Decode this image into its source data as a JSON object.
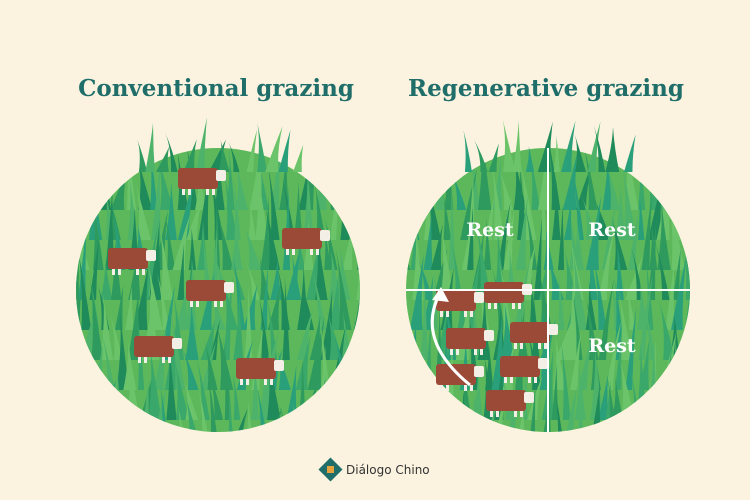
{
  "panels": [
    {
      "title": "Conventional grazing"
    },
    {
      "title": "Regenerative grazing",
      "paddocks": [
        "Rest",
        "Rest",
        "Rest"
      ]
    }
  ],
  "footer": {
    "brand": "Diálogo Chino"
  }
}
